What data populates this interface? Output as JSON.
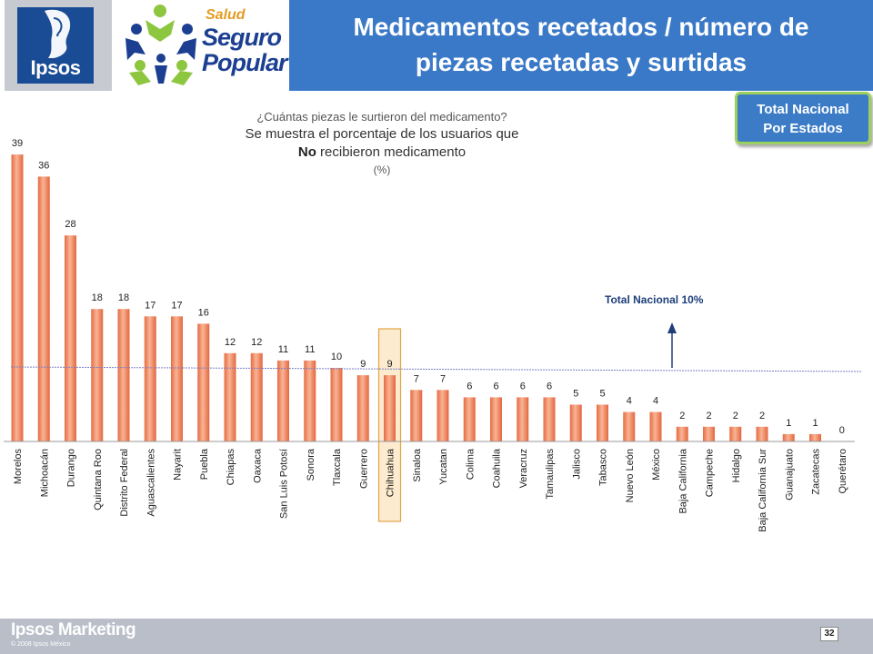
{
  "header": {
    "ipsos_logo_text": "Ipsos",
    "program_logo": {
      "line_small": "Salud",
      "line1": "Seguro",
      "line2": "Popular"
    },
    "title_line1": "Medicamentos recetados / número de",
    "title_line2": "piezas recetadas y surtidas"
  },
  "badge": {
    "line1": "Total Nacional",
    "line2": "Por Estados"
  },
  "question": {
    "line1": "¿Cuántas  piezas  le surtieron del medicamento?",
    "line2": "Se muestra el porcentaje de los usuarios que",
    "line3_bold": "No",
    "line3_rest": " recibieron  medicamento",
    "line4": "(%)"
  },
  "annotation": "Total Nacional 10%",
  "chart_data": {
    "type": "bar",
    "categories": [
      "Morelos",
      "Michoacán",
      "Durango",
      "Quintana Roo",
      "Distrito Federal",
      "Aguascalientes",
      "Nayarit",
      "Puebla",
      "Chiapas",
      "Oaxaca",
      "San Luis Potosí",
      "Sonora",
      "Tlaxcala",
      "Guerrero",
      "Chihuahua",
      "Sinaloa",
      "Yucatan",
      "Colima",
      "Coahuila",
      "Veracruz",
      "Tamaulipas",
      "Jalisco",
      "Tabasco",
      "Nuevo León",
      "México",
      "Baja California",
      "Campeche",
      "Hidalgo",
      "Baja California Sur",
      "Guanajuato",
      "Zacatecas",
      "Querétaro"
    ],
    "values": [
      39,
      36,
      28,
      18,
      18,
      17,
      17,
      16,
      12,
      12,
      11,
      11,
      10,
      9,
      9,
      7,
      7,
      6,
      6,
      6,
      6,
      5,
      5,
      4,
      4,
      2,
      2,
      2,
      2,
      1,
      1,
      0
    ],
    "value_labels": [
      "39",
      "36",
      "28",
      "18",
      "18",
      "17",
      "17",
      "16",
      "12",
      "12",
      "11",
      "11",
      "10",
      "9",
      "9",
      "7",
      "7",
      "6",
      "6",
      "6",
      "6",
      "5",
      "5",
      "4",
      "4",
      "2",
      "2",
      "2",
      "2",
      "1",
      "1",
      "0"
    ],
    "highlighted_category": "Chihuahua",
    "reference_line": {
      "value": 10,
      "label": "Total Nacional 10%"
    },
    "ylim": [
      0,
      40
    ],
    "title": "",
    "xlabel": "",
    "ylabel": "",
    "colors": {
      "bar_top": "#f9c6a8",
      "bar_mid": "#f0805a",
      "bar_bottom": "#e4663f",
      "reference": "#7b7fc4",
      "highlight_fill": "#fcebcf",
      "highlight_border": "#e2a447"
    }
  },
  "footer": {
    "brand": "Ipsos Marketing",
    "copyright": "© 2008 Ipsos México",
    "page": "32"
  }
}
